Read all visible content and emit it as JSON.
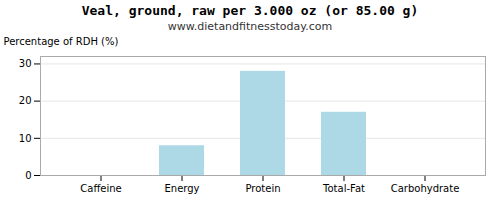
{
  "chart_data": {
    "type": "bar",
    "title": "Veal, ground, raw per 3.000 oz (or 85.00 g)",
    "subtitle": "www.dietandfitnesstoday.com",
    "categories": [
      "Caffeine",
      "Energy",
      "Protein",
      "Total-Fat",
      "Carbohydrate"
    ],
    "values": [
      0,
      8,
      28,
      17,
      0
    ],
    "color": "#add8e6",
    "ylabel": "Percentage of RDH (%)",
    "ylim": [
      0,
      32
    ],
    "yticks": [
      0,
      10,
      20,
      30
    ],
    "grid": true
  }
}
